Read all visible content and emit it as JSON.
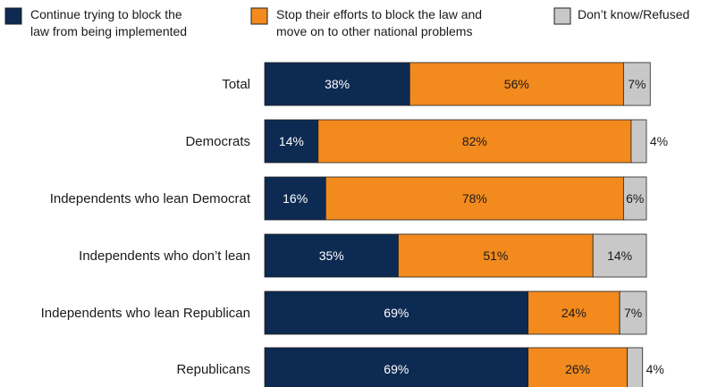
{
  "chart_data": {
    "type": "bar",
    "orientation": "horizontal",
    "stacked": true,
    "categories": [
      "Total",
      "Democrats",
      "Independents who lean Democrat",
      "Independents who don’t lean",
      "Independents who lean Republican",
      "Republicans"
    ],
    "series": [
      {
        "name": "Continue trying to block the law from being implemented",
        "legend_lines": [
          "Continue trying to block the",
          "law from being implemented"
        ],
        "color": "#0d2a52",
        "label_color": "#ffffff",
        "values": [
          38,
          14,
          16,
          35,
          69,
          69
        ],
        "labels": [
          "38%",
          "14%",
          "16%",
          "35%",
          "69%",
          "69%"
        ]
      },
      {
        "name": "Stop their efforts to block the law and move on to other national problems",
        "legend_lines": [
          "Stop their efforts to block the law and",
          "move on to other national problems"
        ],
        "color": "#f28a1e",
        "label_color": "#1a1a1a",
        "values": [
          56,
          82,
          78,
          51,
          24,
          26
        ],
        "labels": [
          "56%",
          "82%",
          "78%",
          "51%",
          "24%",
          "26%"
        ]
      },
      {
        "name": "Don’t know/Refused",
        "legend_lines": [
          "Don’t know/Refused"
        ],
        "color": "#c8c8c8",
        "label_color": "#1a1a1a",
        "values": [
          7,
          4,
          6,
          14,
          7,
          4
        ],
        "labels": [
          "7%",
          "4%",
          "6%",
          "14%",
          "7%",
          "4%"
        ],
        "label_outside": [
          false,
          true,
          false,
          false,
          false,
          true
        ]
      }
    ],
    "xlim": [
      0,
      100
    ],
    "grid": false,
    "legend_position": "top"
  }
}
